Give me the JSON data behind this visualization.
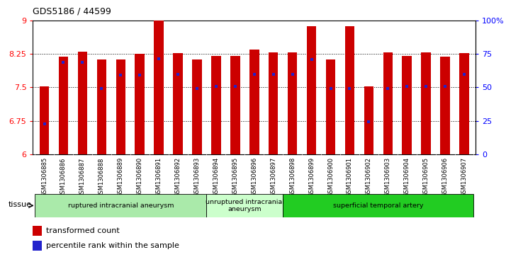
{
  "title": "GDS5186 / 44599",
  "samples": [
    "GSM1306885",
    "GSM1306886",
    "GSM1306887",
    "GSM1306888",
    "GSM1306889",
    "GSM1306890",
    "GSM1306891",
    "GSM1306892",
    "GSM1306893",
    "GSM1306894",
    "GSM1306895",
    "GSM1306896",
    "GSM1306897",
    "GSM1306898",
    "GSM1306899",
    "GSM1306900",
    "GSM1306901",
    "GSM1306902",
    "GSM1306903",
    "GSM1306904",
    "GSM1306905",
    "GSM1306906",
    "GSM1306907"
  ],
  "bar_values": [
    7.52,
    8.19,
    8.3,
    8.12,
    8.12,
    8.25,
    9.0,
    8.27,
    8.12,
    8.21,
    8.21,
    8.35,
    8.29,
    8.29,
    8.87,
    8.12,
    8.87,
    7.52,
    8.29,
    8.21,
    8.29,
    8.19,
    8.27
  ],
  "percentile_values": [
    6.68,
    8.07,
    8.07,
    7.48,
    7.78,
    7.78,
    8.15,
    7.8,
    7.48,
    7.52,
    7.52,
    7.8,
    7.8,
    7.8,
    8.12,
    7.48,
    7.48,
    6.72,
    7.48,
    7.52,
    7.52,
    7.52,
    7.8
  ],
  "ylim_left": [
    6,
    9
  ],
  "yticks_left": [
    6,
    6.75,
    7.5,
    8.25,
    9
  ],
  "ytick_labels_left": [
    "6",
    "6.75",
    "7.5",
    "8.25",
    "9"
  ],
  "yticks_right": [
    0,
    25,
    50,
    75,
    100
  ],
  "ytick_labels_right": [
    "0",
    "25",
    "50",
    "75",
    "100%"
  ],
  "bar_color": "#cc0000",
  "dot_color": "#2222cc",
  "xticklabel_bg": "#d8d8d8",
  "tissue_groups": [
    {
      "label": "ruptured intracranial aneurysm",
      "start": 0,
      "end": 9,
      "color": "#aaeaaa"
    },
    {
      "label": "unruptured intracranial\naneurysm",
      "start": 9,
      "end": 13,
      "color": "#ccffcc"
    },
    {
      "label": "superficial temporal artery",
      "start": 13,
      "end": 23,
      "color": "#22cc22"
    }
  ]
}
